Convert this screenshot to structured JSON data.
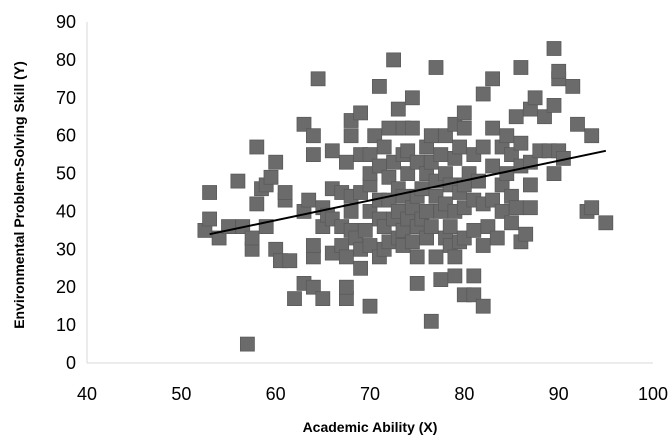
{
  "chart_data": {
    "type": "scatter",
    "title": "",
    "xlabel": "Academic Ability (X)",
    "ylabel": "Environmental Problem-Solving Skill (Y)",
    "xlim": [
      40,
      100
    ],
    "ylim": [
      0,
      90
    ],
    "xticks": [
      "40",
      "50",
      "60",
      "70",
      "80",
      "90",
      "100"
    ],
    "yticks": [
      "0",
      "10",
      "20",
      "30",
      "40",
      "50",
      "60",
      "70",
      "80",
      "90"
    ],
    "grid": false,
    "legend": "none",
    "marker_color": "#6b6b6b",
    "trendline_color": "#000000",
    "trendline": {
      "x": [
        53,
        95
      ],
      "y": [
        34,
        56
      ]
    },
    "points": [
      [
        52.5,
        35
      ],
      [
        53,
        38
      ],
      [
        53,
        45
      ],
      [
        54,
        33
      ],
      [
        55,
        36
      ],
      [
        56,
        48
      ],
      [
        56.5,
        36
      ],
      [
        57,
        5
      ],
      [
        57.5,
        30
      ],
      [
        57.5,
        33
      ],
      [
        58,
        42
      ],
      [
        58,
        57
      ],
      [
        58.5,
        46
      ],
      [
        59,
        36
      ],
      [
        59,
        47
      ],
      [
        59.5,
        49
      ],
      [
        60,
        30
      ],
      [
        60,
        53
      ],
      [
        60.5,
        27
      ],
      [
        61,
        43
      ],
      [
        61,
        45
      ],
      [
        61.5,
        27
      ],
      [
        62,
        17
      ],
      [
        63,
        21
      ],
      [
        63,
        40
      ],
      [
        63,
        63
      ],
      [
        63.5,
        43
      ],
      [
        64,
        20
      ],
      [
        64,
        28
      ],
      [
        64,
        31
      ],
      [
        64,
        55
      ],
      [
        64,
        60
      ],
      [
        64.5,
        75
      ],
      [
        65,
        17
      ],
      [
        65,
        36
      ],
      [
        65,
        41
      ],
      [
        65.5,
        39
      ],
      [
        66,
        29
      ],
      [
        66,
        38
      ],
      [
        66,
        46
      ],
      [
        66,
        56
      ],
      [
        67,
        31
      ],
      [
        67,
        36
      ],
      [
        67,
        45
      ],
      [
        67.5,
        17
      ],
      [
        67.5,
        20
      ],
      [
        67.5,
        28
      ],
      [
        67.5,
        53
      ],
      [
        68,
        35
      ],
      [
        68,
        40
      ],
      [
        68,
        44
      ],
      [
        68,
        60
      ],
      [
        68,
        64
      ],
      [
        68.5,
        33
      ],
      [
        69,
        25
      ],
      [
        69,
        30
      ],
      [
        69,
        45
      ],
      [
        69,
        55
      ],
      [
        69,
        66
      ],
      [
        69.5,
        35
      ],
      [
        70,
        15
      ],
      [
        70,
        31
      ],
      [
        70,
        40
      ],
      [
        70,
        47
      ],
      [
        70,
        50
      ],
      [
        70,
        55
      ],
      [
        70.5,
        60
      ],
      [
        71,
        28
      ],
      [
        71,
        38
      ],
      [
        71,
        43
      ],
      [
        71,
        52
      ],
      [
        71,
        73
      ],
      [
        71.5,
        30
      ],
      [
        71.5,
        36
      ],
      [
        71.5,
        57
      ],
      [
        72,
        32
      ],
      [
        72,
        43
      ],
      [
        72,
        49
      ],
      [
        72,
        62
      ],
      [
        72.5,
        38
      ],
      [
        72.5,
        53
      ],
      [
        72.5,
        80
      ],
      [
        73,
        33
      ],
      [
        73,
        40
      ],
      [
        73,
        46
      ],
      [
        73,
        67
      ],
      [
        73.5,
        31
      ],
      [
        73.5,
        35
      ],
      [
        73.5,
        44
      ],
      [
        73.5,
        55
      ],
      [
        73.5,
        62
      ],
      [
        74,
        38
      ],
      [
        74,
        50
      ],
      [
        74,
        56
      ],
      [
        74.5,
        32
      ],
      [
        74.5,
        41
      ],
      [
        74.5,
        62
      ],
      [
        74.5,
        70
      ],
      [
        75,
        21
      ],
      [
        75,
        28
      ],
      [
        75,
        36
      ],
      [
        75,
        44
      ],
      [
        75,
        53
      ],
      [
        75.5,
        38
      ],
      [
        75.5,
        46
      ],
      [
        76,
        33
      ],
      [
        76,
        40
      ],
      [
        76,
        50
      ],
      [
        76,
        57
      ],
      [
        76.5,
        11
      ],
      [
        76.5,
        36
      ],
      [
        76.5,
        53
      ],
      [
        76.5,
        60
      ],
      [
        77,
        28
      ],
      [
        77,
        44
      ],
      [
        77,
        48
      ],
      [
        77,
        78
      ],
      [
        77.5,
        22
      ],
      [
        77.5,
        40
      ],
      [
        77.5,
        55
      ],
      [
        78,
        33
      ],
      [
        78,
        42
      ],
      [
        78,
        50
      ],
      [
        78,
        60
      ],
      [
        78.5,
        31
      ],
      [
        78.5,
        36
      ],
      [
        78.5,
        47
      ],
      [
        79,
        23
      ],
      [
        79,
        28
      ],
      [
        79,
        40
      ],
      [
        79,
        54
      ],
      [
        79,
        63
      ],
      [
        79.5,
        32
      ],
      [
        79.5,
        45
      ],
      [
        79.5,
        57
      ],
      [
        80,
        18
      ],
      [
        80,
        33
      ],
      [
        80,
        41
      ],
      [
        80,
        47
      ],
      [
        80,
        62
      ],
      [
        80,
        66
      ],
      [
        80.5,
        50
      ],
      [
        81,
        18
      ],
      [
        81,
        23
      ],
      [
        81,
        35
      ],
      [
        81,
        43
      ],
      [
        81,
        55
      ],
      [
        81.5,
        48
      ],
      [
        82,
        15
      ],
      [
        82,
        31
      ],
      [
        82,
        42
      ],
      [
        82,
        57
      ],
      [
        82,
        71
      ],
      [
        82.5,
        36
      ],
      [
        83,
        43
      ],
      [
        83,
        52
      ],
      [
        83,
        62
      ],
      [
        83,
        75
      ],
      [
        83.5,
        33
      ],
      [
        84,
        40
      ],
      [
        84,
        47
      ],
      [
        84,
        57
      ],
      [
        84.5,
        50
      ],
      [
        84.5,
        60
      ],
      [
        85,
        37
      ],
      [
        85,
        44
      ],
      [
        85,
        55
      ],
      [
        85.5,
        41
      ],
      [
        85.5,
        65
      ],
      [
        86,
        32
      ],
      [
        86,
        52
      ],
      [
        86,
        58
      ],
      [
        86,
        78
      ],
      [
        86.5,
        34
      ],
      [
        87,
        41
      ],
      [
        87,
        47
      ],
      [
        87,
        53
      ],
      [
        87,
        67
      ],
      [
        87.5,
        70
      ],
      [
        88,
        56
      ],
      [
        88.5,
        65
      ],
      [
        89,
        56
      ],
      [
        89.5,
        50
      ],
      [
        89.5,
        68
      ],
      [
        89.5,
        83
      ],
      [
        90,
        56
      ],
      [
        90,
        75
      ],
      [
        90,
        77
      ],
      [
        90.5,
        54
      ],
      [
        91.5,
        73
      ],
      [
        92,
        63
      ],
      [
        93,
        40
      ],
      [
        93.5,
        60
      ],
      [
        93.5,
        41
      ],
      [
        95,
        37
      ]
    ]
  }
}
